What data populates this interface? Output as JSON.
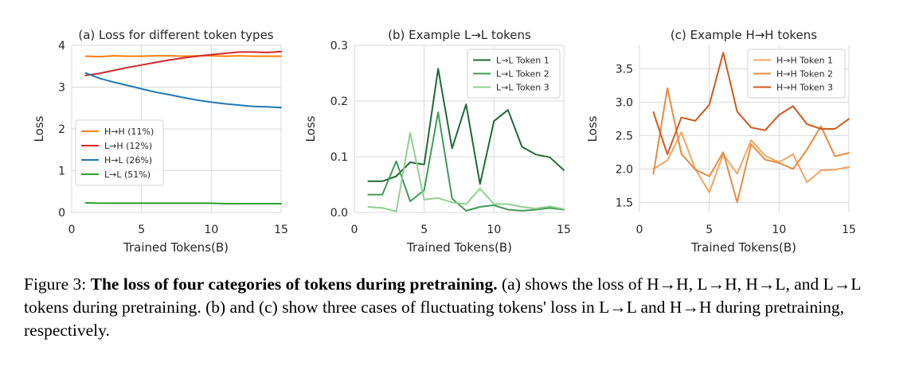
{
  "figure": {
    "caption_label": "Figure 3:",
    "caption_bold": "The loss of four categories of tokens during pretraining.",
    "caption_text": "(a) shows the loss of H→H, L→H, H→L, and L→L tokens during pretraining. (b) and (c) show three cases of fluctuating tokens' loss in L→L and H→H during pretraining, respectively."
  },
  "chart_data": [
    {
      "type": "line",
      "title": "(a) Loss for different token types",
      "xlabel": "Trained Tokens(B)",
      "ylabel": "Loss",
      "xlim": [
        0,
        15
      ],
      "ylim": [
        0,
        4
      ],
      "xticks": [
        0,
        5,
        10,
        15
      ],
      "yticks": [
        0,
        1,
        2,
        3,
        4
      ],
      "x": [
        1,
        2,
        3,
        4,
        5,
        6,
        7,
        8,
        9,
        10,
        11,
        12,
        13,
        14,
        15
      ],
      "grid": true,
      "legend_position": "center-left",
      "series": [
        {
          "name": "H→H (11%)",
          "color": "#ff7f0e",
          "values": [
            3.74,
            3.73,
            3.75,
            3.74,
            3.74,
            3.75,
            3.75,
            3.74,
            3.75,
            3.75,
            3.74,
            3.75,
            3.74,
            3.74,
            3.74
          ]
        },
        {
          "name": "L→H (12%)",
          "color": "#d62728",
          "values": [
            3.28,
            3.33,
            3.4,
            3.47,
            3.53,
            3.59,
            3.65,
            3.7,
            3.74,
            3.78,
            3.81,
            3.84,
            3.84,
            3.83,
            3.85
          ]
        },
        {
          "name": "H→L (26%)",
          "color": "#1f77b4",
          "values": [
            3.34,
            3.21,
            3.12,
            3.04,
            2.96,
            2.88,
            2.82,
            2.75,
            2.69,
            2.64,
            2.6,
            2.57,
            2.54,
            2.53,
            2.51
          ]
        },
        {
          "name": "L→L (51%)",
          "color": "#2ca02c",
          "values": [
            0.23,
            0.22,
            0.22,
            0.22,
            0.22,
            0.22,
            0.22,
            0.22,
            0.22,
            0.22,
            0.21,
            0.21,
            0.21,
            0.21,
            0.21
          ]
        }
      ]
    },
    {
      "type": "line",
      "title": "(b) Example L→L tokens",
      "xlabel": "Trained Tokens(B)",
      "ylabel": "Loss",
      "xlim": [
        0,
        15
      ],
      "ylim": [
        0,
        0.3
      ],
      "xticks": [
        0,
        5,
        10,
        15
      ],
      "yticks": [
        "0.0",
        "0.1",
        "0.2",
        "0.3"
      ],
      "x": [
        1,
        2,
        3,
        4,
        5,
        6,
        7,
        8,
        9,
        10,
        11,
        12,
        13,
        14,
        15
      ],
      "grid": true,
      "legend_position": "top-right",
      "series": [
        {
          "name": "L→L Token 1",
          "color": "#1e6b33",
          "values": [
            0.056,
            0.056,
            0.065,
            0.09,
            0.086,
            0.258,
            0.115,
            0.194,
            0.051,
            0.164,
            0.184,
            0.118,
            0.104,
            0.099,
            0.076
          ]
        },
        {
          "name": "L→L Token 2",
          "color": "#3f9b55",
          "values": [
            0.032,
            0.032,
            0.092,
            0.02,
            0.04,
            0.18,
            0.025,
            0.003,
            0.01,
            0.013,
            0.005,
            0.003,
            0.005,
            0.008,
            0.005
          ]
        },
        {
          "name": "L→L Token 3",
          "color": "#8fd08f",
          "values": [
            0.01,
            0.008,
            0.002,
            0.143,
            0.023,
            0.026,
            0.018,
            0.015,
            0.043,
            0.015,
            0.015,
            0.01,
            0.007,
            0.011,
            0.006
          ]
        }
      ]
    },
    {
      "type": "line",
      "title": "(c) Example H→H tokens",
      "xlabel": "Trained Tokens(B)",
      "ylabel": "Loss",
      "xlim": [
        0,
        15
      ],
      "ylim": [
        1.35,
        3.85
      ],
      "xticks": [
        0,
        5,
        10,
        15
      ],
      "yticks": [
        "1.5",
        "2.0",
        "2.5",
        "3.0",
        "3.5"
      ],
      "x": [
        1,
        2,
        3,
        4,
        5,
        6,
        7,
        8,
        9,
        10,
        11,
        12,
        13,
        14,
        15
      ],
      "grid": true,
      "legend_position": "top-right",
      "series": [
        {
          "name": "H→H Token 1",
          "color": "#f4a460",
          "values": [
            2.0,
            2.13,
            2.55,
            2.0,
            1.65,
            2.22,
            1.93,
            2.43,
            2.2,
            2.1,
            2.22,
            1.8,
            1.98,
            1.99,
            2.03
          ]
        },
        {
          "name": "H→H Token 2",
          "color": "#e98a3f",
          "values": [
            1.93,
            3.21,
            2.23,
            1.99,
            1.89,
            2.25,
            1.5,
            2.37,
            2.14,
            2.09,
            2.0,
            2.29,
            2.64,
            2.19,
            2.24
          ]
        },
        {
          "name": "H→H Token 3",
          "color": "#cf5a1c",
          "values": [
            2.85,
            2.22,
            2.77,
            2.72,
            2.96,
            3.74,
            2.86,
            2.62,
            2.58,
            2.81,
            2.94,
            2.67,
            2.6,
            2.6,
            2.75
          ]
        }
      ]
    }
  ]
}
